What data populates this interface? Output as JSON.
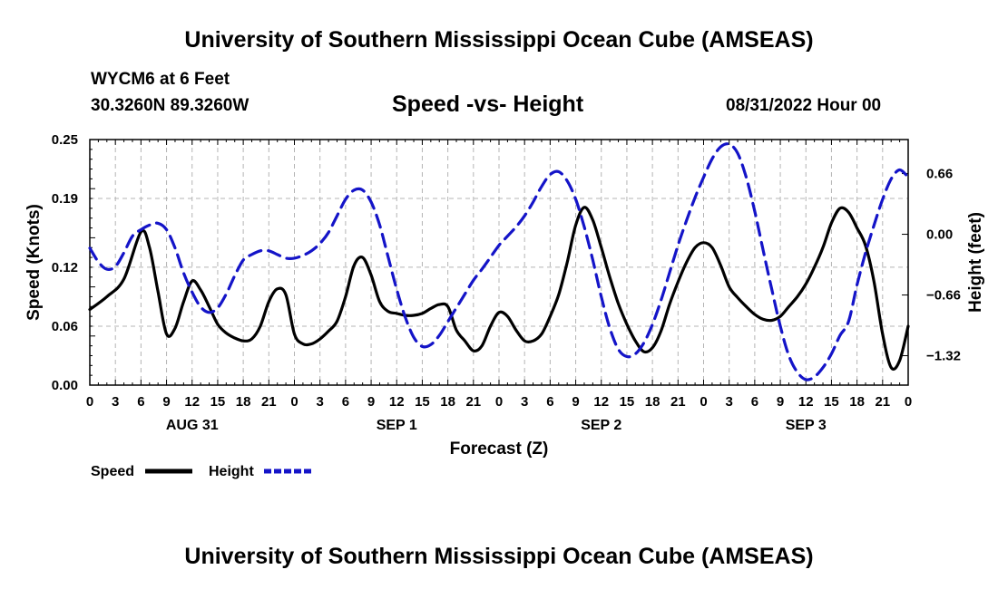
{
  "page": {
    "title": "University of Southern Mississippi Ocean Cube (AMSEAS)",
    "footer_title": "University of Southern Mississippi Ocean Cube (AMSEAS)",
    "station": "WYCM6 at 6 Feet",
    "coords": "30.3260N  89.3260W",
    "chart_title": "Speed -vs- Height",
    "datetime": "08/31/2022 Hour 00"
  },
  "chart_data": {
    "type": "line",
    "title": "Speed -vs- Height",
    "xlabel": "Forecast (Z)",
    "ylabel": "Speed (Knots)",
    "y2label": "Height (feet)",
    "xlim": [
      0,
      96
    ],
    "ylim": [
      0,
      0.25
    ],
    "y2lim": [
      -1.64,
      1.03
    ],
    "x_tick_step": 3,
    "x_tick_labels": [
      "0",
      "3",
      "6",
      "9",
      "12",
      "15",
      "18",
      "21",
      "0",
      "3",
      "6",
      "9",
      "12",
      "15",
      "18",
      "21",
      "0",
      "3",
      "6",
      "9",
      "12",
      "15",
      "18",
      "21",
      "0",
      "3",
      "6",
      "9",
      "12",
      "15",
      "18",
      "21",
      "0"
    ],
    "day_labels": [
      {
        "label": "AUG 31",
        "x": 12
      },
      {
        "label": "SEP 1",
        "x": 36
      },
      {
        "label": "SEP 2",
        "x": 60
      },
      {
        "label": "SEP 3",
        "x": 84
      }
    ],
    "y_ticks": [
      0.0,
      0.06,
      0.12,
      0.19,
      0.25
    ],
    "y_tick_labels": [
      "0.00",
      "0.06",
      "0.12",
      "0.19",
      "0.25"
    ],
    "y2_ticks": [
      -1.32,
      -0.66,
      0.0,
      0.66
    ],
    "y2_tick_labels": [
      "−1.32",
      "−0.66",
      "0.00",
      "0.66"
    ],
    "grid": true,
    "legend": [
      {
        "name": "Speed",
        "color": "#000000",
        "style": "solid"
      },
      {
        "name": "Height",
        "color": "#1414c8",
        "style": "dashed"
      }
    ],
    "series": [
      {
        "name": "Speed",
        "axis": "left",
        "color": "#000000",
        "x": [
          0,
          2,
          4,
          6,
          7,
          8,
          9,
          10,
          11,
          12,
          13,
          14,
          15,
          16,
          17,
          18,
          19,
          20,
          21,
          22,
          23,
          24,
          25,
          26,
          27,
          28,
          29,
          30,
          31,
          32,
          33,
          34,
          35,
          36,
          37,
          38,
          39,
          40,
          41,
          42,
          43,
          44,
          45,
          46,
          47,
          48,
          49,
          50,
          51,
          52,
          53,
          54,
          55,
          56,
          57,
          58,
          59,
          60,
          61,
          62,
          63,
          64,
          65,
          66,
          67,
          68,
          69,
          70,
          71,
          72,
          73,
          74,
          75,
          76,
          77,
          78,
          79,
          80,
          81,
          82,
          83,
          84,
          85,
          86,
          87,
          88,
          89,
          90,
          91,
          92,
          93,
          94,
          95,
          96
        ],
        "y": [
          0.077,
          0.09,
          0.108,
          0.156,
          0.14,
          0.095,
          0.052,
          0.058,
          0.085,
          0.106,
          0.097,
          0.08,
          0.062,
          0.053,
          0.048,
          0.045,
          0.047,
          0.06,
          0.085,
          0.098,
          0.092,
          0.052,
          0.042,
          0.042,
          0.047,
          0.055,
          0.065,
          0.09,
          0.122,
          0.13,
          0.112,
          0.085,
          0.075,
          0.073,
          0.071,
          0.071,
          0.073,
          0.078,
          0.082,
          0.08,
          0.056,
          0.045,
          0.035,
          0.04,
          0.06,
          0.074,
          0.07,
          0.056,
          0.045,
          0.045,
          0.052,
          0.07,
          0.092,
          0.125,
          0.163,
          0.181,
          0.168,
          0.14,
          0.11,
          0.083,
          0.062,
          0.045,
          0.034,
          0.038,
          0.055,
          0.082,
          0.105,
          0.125,
          0.14,
          0.145,
          0.14,
          0.122,
          0.1,
          0.089,
          0.08,
          0.072,
          0.067,
          0.066,
          0.07,
          0.08,
          0.09,
          0.103,
          0.12,
          0.14,
          0.165,
          0.18,
          0.176,
          0.16,
          0.142,
          0.105,
          0.052,
          0.018,
          0.025,
          0.06
        ]
      },
      {
        "name": "Height",
        "axis": "right",
        "color": "#1414c8",
        "x": [
          0,
          1,
          2,
          3,
          4,
          5,
          6,
          7,
          8,
          9,
          10,
          11,
          12,
          13,
          14,
          15,
          16,
          17,
          18,
          19,
          20,
          21,
          22,
          23,
          24,
          25,
          26,
          27,
          28,
          29,
          30,
          31,
          32,
          33,
          34,
          35,
          36,
          37,
          38,
          39,
          40,
          41,
          42,
          43,
          44,
          45,
          46,
          47,
          48,
          49,
          50,
          51,
          52,
          53,
          54,
          55,
          56,
          57,
          58,
          59,
          60,
          61,
          62,
          63,
          64,
          65,
          66,
          67,
          68,
          69,
          70,
          71,
          72,
          73,
          74,
          75,
          76,
          77,
          78,
          79,
          80,
          81,
          82,
          83,
          84,
          85,
          86,
          87,
          88,
          89,
          90,
          91,
          92,
          93,
          94,
          95,
          96
        ],
        "y": [
          -0.15,
          -0.3,
          -0.38,
          -0.35,
          -0.2,
          -0.02,
          0.05,
          0.1,
          0.12,
          0.05,
          -0.15,
          -0.42,
          -0.63,
          -0.79,
          -0.85,
          -0.8,
          -0.65,
          -0.45,
          -0.28,
          -0.22,
          -0.18,
          -0.18,
          -0.22,
          -0.26,
          -0.26,
          -0.23,
          -0.18,
          -0.1,
          0.02,
          0.2,
          0.38,
          0.48,
          0.48,
          0.35,
          0.1,
          -0.25,
          -0.6,
          -0.9,
          -1.12,
          -1.22,
          -1.2,
          -1.1,
          -0.95,
          -0.8,
          -0.65,
          -0.5,
          -0.38,
          -0.25,
          -0.12,
          -0.02,
          0.08,
          0.2,
          0.35,
          0.52,
          0.65,
          0.68,
          0.58,
          0.38,
          0.08,
          -0.28,
          -0.68,
          -1.02,
          -1.25,
          -1.33,
          -1.3,
          -1.18,
          -0.98,
          -0.72,
          -0.42,
          -0.12,
          0.15,
          0.4,
          0.62,
          0.82,
          0.95,
          0.98,
          0.88,
          0.62,
          0.25,
          -0.18,
          -0.6,
          -1.0,
          -1.32,
          -1.5,
          -1.58,
          -1.55,
          -1.45,
          -1.3,
          -1.1,
          -0.95,
          -0.55,
          -0.2,
          0.1,
          0.38,
          0.6,
          0.7,
          0.62
        ]
      }
    ]
  }
}
